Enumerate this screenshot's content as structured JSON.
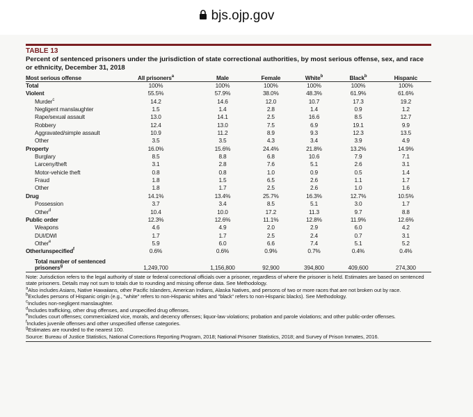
{
  "header": {
    "url": "bjs.ojp.gov"
  },
  "table_label": "TABLE 13",
  "title": "Percent of sentenced prisoners under the jurisdiction of state correctional authorities, by most serious offense, sex, and race or ethnicity, December 31, 2018",
  "table": {
    "columns": [
      {
        "text": "Most serious offense"
      },
      {
        "text": "All prisoners",
        "note": "a"
      },
      {
        "text": "Male"
      },
      {
        "text": "Female"
      },
      {
        "text": "White",
        "note": "b"
      },
      {
        "text": "Black",
        "note": "b"
      },
      {
        "text": "Hispanic"
      }
    ],
    "rows": [
      {
        "label": "Total",
        "values": [
          "100%",
          "100%",
          "100%",
          "100%",
          "100%",
          "100%"
        ]
      },
      {
        "label": "Violent",
        "values": [
          "55.5%",
          "57.9%",
          "38.0%",
          "48.3%",
          "61.9%",
          "61.6%"
        ]
      },
      {
        "label": "Murder",
        "note": "c",
        "values": [
          "14.2",
          "14.6",
          "12.0",
          "10.7",
          "17.3",
          "19.2"
        ]
      },
      {
        "label": "Negligent manslaughter",
        "values": [
          "1.5",
          "1.4",
          "2.8",
          "1.4",
          "0.9",
          "1.2"
        ]
      },
      {
        "label": "Rape/sexual assault",
        "values": [
          "13.0",
          "14.1",
          "2.5",
          "16.6",
          "8.5",
          "12.7"
        ]
      },
      {
        "label": "Robbery",
        "values": [
          "12.4",
          "13.0",
          "7.5",
          "6.9",
          "19.1",
          "9.9"
        ]
      },
      {
        "label": "Aggravated/simple assault",
        "values": [
          "10.9",
          "11.2",
          "8.9",
          "9.3",
          "12.3",
          "13.5"
        ]
      },
      {
        "label": "Other",
        "values": [
          "3.5",
          "3.5",
          "4.3",
          "3.4",
          "3.9",
          "4.9"
        ]
      },
      {
        "label": "Property",
        "values": [
          "16.0%",
          "15.6%",
          "24.4%",
          "21.8%",
          "13.2%",
          "14.9%"
        ]
      },
      {
        "label": "Burglary",
        "values": [
          "8.5",
          "8.8",
          "6.8",
          "10.6",
          "7.9",
          "7.1"
        ]
      },
      {
        "label": "Larceny/theft",
        "values": [
          "3.1",
          "2.8",
          "7.6",
          "5.1",
          "2.6",
          "3.1"
        ]
      },
      {
        "label": "Motor-vehicle theft",
        "values": [
          "0.8",
          "0.8",
          "1.0",
          "0.9",
          "0.5",
          "1.4"
        ]
      },
      {
        "label": "Fraud",
        "values": [
          "1.8",
          "1.5",
          "6.5",
          "2.6",
          "1.1",
          "1.7"
        ]
      },
      {
        "label": "Other",
        "values": [
          "1.8",
          "1.7",
          "2.5",
          "2.6",
          "1.0",
          "1.6"
        ]
      },
      {
        "label": "Drug",
        "values": [
          "14.1%",
          "13.4%",
          "25.7%",
          "16.3%",
          "12.7%",
          "10.5%"
        ]
      },
      {
        "label": "Possession",
        "values": [
          "3.7",
          "3.4",
          "8.5",
          "5.1",
          "3.0",
          "1.7"
        ]
      },
      {
        "label": "Other",
        "note": "d",
        "values": [
          "10.4",
          "10.0",
          "17.2",
          "11.3",
          "9.7",
          "8.8"
        ]
      },
      {
        "label": "Public order",
        "values": [
          "12.3%",
          "12.6%",
          "11.1%",
          "12.8%",
          "11.9%",
          "12.6%"
        ]
      },
      {
        "label": "Weapons",
        "values": [
          "4.6",
          "4.9",
          "2.0",
          "2.9",
          "6.0",
          "4.2"
        ]
      },
      {
        "label": "DUI/DWI",
        "values": [
          "1.7",
          "1.7",
          "2.5",
          "2.4",
          "0.7",
          "3.1"
        ]
      },
      {
        "label": "Other",
        "note": "e",
        "values": [
          "5.9",
          "6.0",
          "6.6",
          "7.4",
          "5.1",
          "5.2"
        ]
      },
      {
        "label": "Other/unspecified",
        "note": "f",
        "values": [
          "0.6%",
          "0.6%",
          "0.9%",
          "0.7%",
          "0.4%",
          "0.4%"
        ]
      },
      {
        "label": "Total number of sentenced prisoners",
        "note": "g",
        "values": [
          "1,249,700",
          "1,156,800",
          "92,900",
          "394,800",
          "409,600",
          "274,300"
        ]
      }
    ]
  },
  "note": "Note: Jurisdiction refers to the legal authority of state or federal correctional officials over a prisoner, regardless of where the prisoner is held. Estimates are based on sentenced state prisoners. Details may not sum to totals due to rounding and missing offense data. See Methodology.",
  "footnotes": [
    {
      "mark": "a",
      "text": "Also includes Asians, Native Hawaiians, other Pacific Islanders, American Indians, Alaska Natives, and persons of two or more races that are not broken out by race."
    },
    {
      "mark": "b",
      "text": "Excludes persons of Hispanic origin (e.g., \"white\" refers to non-Hispanic whites and \"black\" refers to non-Hispanic blacks). See Methodology."
    },
    {
      "mark": "c",
      "text": "Includes non-negligent manslaughter."
    },
    {
      "mark": "d",
      "text": "Includes trafficking, other drug offenses, and unspecified drug offenses."
    },
    {
      "mark": "e",
      "text": "Includes court offenses; commercialized vice, morals, and decency offenses; liquor-law violations; probation and parole violations; and other public-order offenses."
    },
    {
      "mark": "f",
      "text": "Includes juvenile offenses and other unspecified offense categories."
    },
    {
      "mark": "g",
      "text": "Estimates are rounded to the nearest 100."
    }
  ],
  "source": "Source: Bureau of Justice Statistics, National Corrections Reporting Program, 2018; National Prisoner Statistics, 2018; and Survey of Prison Inmates, 2016."
}
